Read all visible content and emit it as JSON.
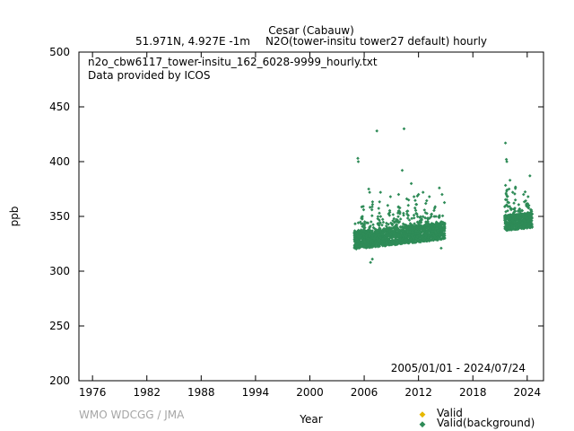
{
  "chart_data": {
    "type": "scatter",
    "title_line1": "Cesar (Cabauw)",
    "title_line2_left": "51.971N, 4.927E -1m",
    "title_line2_right": "N2O(tower-insitu tower27 default) hourly",
    "annotation_file": "n2o_cbw6117_tower-insitu_162_6028-9999_hourly.txt",
    "annotation_provider": "Data provided by ICOS",
    "date_range": "2005/01/01 - 2024/07/24",
    "watermark": "WMO WDCGG / JMA",
    "xlabel": "Year",
    "ylabel": "ppb",
    "xlim": [
      1974.5,
      2025.8
    ],
    "ylim": [
      200,
      500
    ],
    "x_ticks": [
      "1976",
      "1982",
      "1988",
      "1994",
      "2000",
      "2006",
      "2012",
      "2018",
      "2024"
    ],
    "y_ticks": [
      "200",
      "250",
      "300",
      "350",
      "400",
      "450",
      "500"
    ],
    "legend": [
      {
        "label": "Valid",
        "color": "#e6b800"
      },
      {
        "label": "Valid(background)",
        "color": "#2e8b57"
      }
    ],
    "series": [
      {
        "name": "Valid(background)",
        "color": "#2e8b57",
        "segments": [
          {
            "x0": 2004.9,
            "x1": 2014.9,
            "base": 328,
            "spread": 16
          },
          {
            "x0": 2021.5,
            "x1": 2024.56,
            "base": 344,
            "spread": 14
          }
        ],
        "points": [
          [
            2005.3,
            403
          ],
          [
            2005.35,
            400
          ],
          [
            2006.5,
            375
          ],
          [
            2006.6,
            372
          ],
          [
            2007.4,
            428
          ],
          [
            2007.8,
            372
          ],
          [
            2008.6,
            360
          ],
          [
            2008.9,
            368
          ],
          [
            2009.8,
            370
          ],
          [
            2010.2,
            392
          ],
          [
            2010.4,
            430
          ],
          [
            2010.7,
            366
          ],
          [
            2011.2,
            380
          ],
          [
            2011.5,
            368
          ],
          [
            2012.0,
            370
          ],
          [
            2012.5,
            372
          ],
          [
            2013.2,
            368
          ],
          [
            2014.3,
            376
          ],
          [
            2014.6,
            370
          ],
          [
            2006.7,
            308
          ],
          [
            2006.9,
            311
          ],
          [
            2014.5,
            321
          ],
          [
            2021.6,
            417
          ],
          [
            2021.7,
            402
          ],
          [
            2021.75,
            400
          ],
          [
            2022.1,
            383
          ],
          [
            2024.3,
            387
          ],
          [
            2022.0,
            375
          ],
          [
            2022.4,
            372
          ],
          [
            2023.6,
            370
          ],
          [
            2024.1,
            368
          ]
        ]
      }
    ]
  }
}
